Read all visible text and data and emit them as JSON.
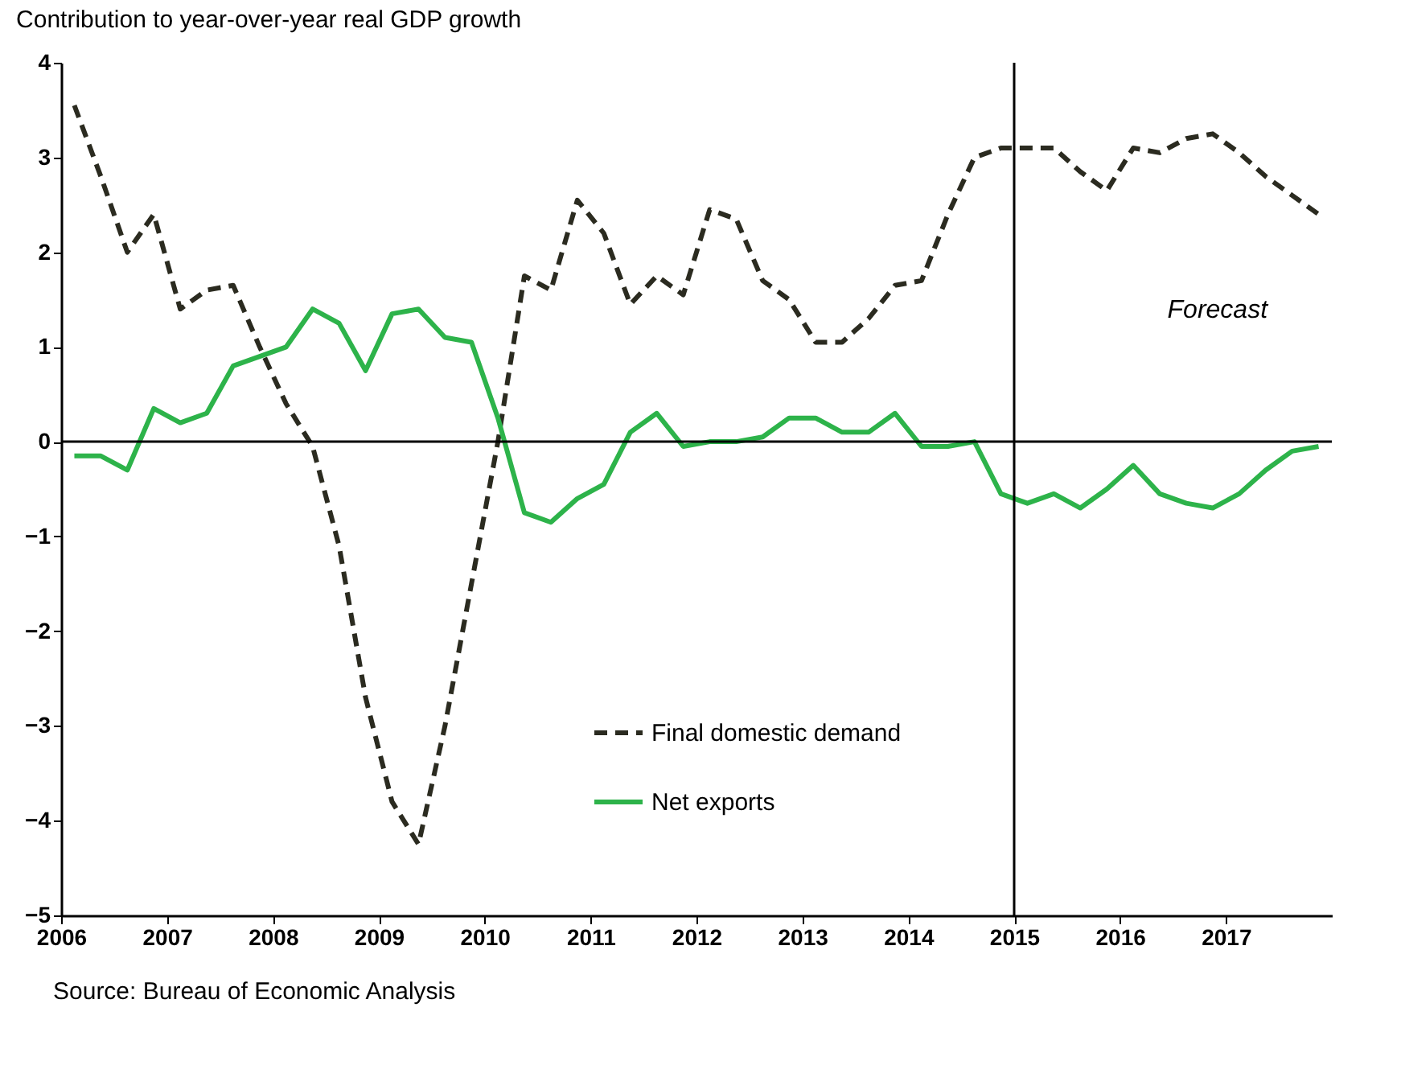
{
  "chart_data": {
    "type": "line",
    "title": "Contribution to year-over-year real GDP growth",
    "x": [
      2006.125,
      2006.375,
      2006.625,
      2006.875,
      2007.125,
      2007.375,
      2007.625,
      2007.875,
      2008.125,
      2008.375,
      2008.625,
      2008.875,
      2009.125,
      2009.375,
      2009.625,
      2009.875,
      2010.125,
      2010.375,
      2010.625,
      2010.875,
      2011.125,
      2011.375,
      2011.625,
      2011.875,
      2012.125,
      2012.375,
      2012.625,
      2012.875,
      2013.125,
      2013.375,
      2013.625,
      2013.875,
      2014.125,
      2014.375,
      2014.625,
      2014.875,
      2015.125,
      2015.375,
      2015.625,
      2015.875,
      2016.125,
      2016.375,
      2016.625,
      2016.875,
      2017.125,
      2017.375,
      2017.625,
      2017.875
    ],
    "series": [
      {
        "name": "Final domestic demand",
        "color": "#2b2b20",
        "line_style": "dashed",
        "values": [
          3.55,
          2.8,
          2.0,
          2.4,
          1.4,
          1.6,
          1.65,
          1.0,
          0.4,
          -0.05,
          -1.1,
          -2.7,
          -3.8,
          -4.25,
          -3.0,
          -1.5,
          0.0,
          1.75,
          1.6,
          2.55,
          2.2,
          1.45,
          1.75,
          1.55,
          2.45,
          2.35,
          1.7,
          1.5,
          1.05,
          1.05,
          1.3,
          1.65,
          1.7,
          2.4,
          3.0,
          3.1,
          3.1,
          3.1,
          2.85,
          2.65,
          3.1,
          3.05,
          3.2,
          3.25,
          3.05,
          2.8,
          2.6,
          2.4
        ]
      },
      {
        "name": "Net exports",
        "color": "#2db34a",
        "line_style": "solid",
        "values": [
          -0.15,
          -0.15,
          -0.3,
          0.35,
          0.2,
          0.3,
          0.8,
          0.9,
          1.0,
          1.4,
          1.25,
          0.75,
          1.35,
          1.4,
          1.1,
          1.05,
          0.25,
          -0.75,
          -0.85,
          -0.6,
          -0.45,
          0.1,
          0.3,
          -0.05,
          0.0,
          0.0,
          0.05,
          0.25,
          0.25,
          0.1,
          0.1,
          0.3,
          -0.05,
          -0.05,
          0.0,
          -0.55,
          -0.65,
          -0.55,
          -0.7,
          -0.5,
          -0.25,
          -0.55,
          -0.65,
          -0.7,
          -0.55,
          -0.3,
          -0.1,
          -0.05
        ]
      }
    ],
    "xlim": [
      2006,
      2018
    ],
    "xticks": [
      2006,
      2007,
      2008,
      2009,
      2010,
      2011,
      2012,
      2013,
      2014,
      2015,
      2016,
      2017
    ],
    "ylim": [
      -5,
      4
    ],
    "yticks": [
      -5,
      -4,
      -3,
      -2,
      -1,
      0,
      1,
      2,
      3,
      4
    ],
    "ref_lines": [
      {
        "axis": "y",
        "value": 0,
        "label": null
      },
      {
        "axis": "x",
        "value": 2015,
        "label": null
      }
    ],
    "annotations": [
      "Forecast",
      "Source: Bureau of Economic Analysis"
    ],
    "legend": "bottom",
    "grid": false,
    "marker": "none"
  }
}
